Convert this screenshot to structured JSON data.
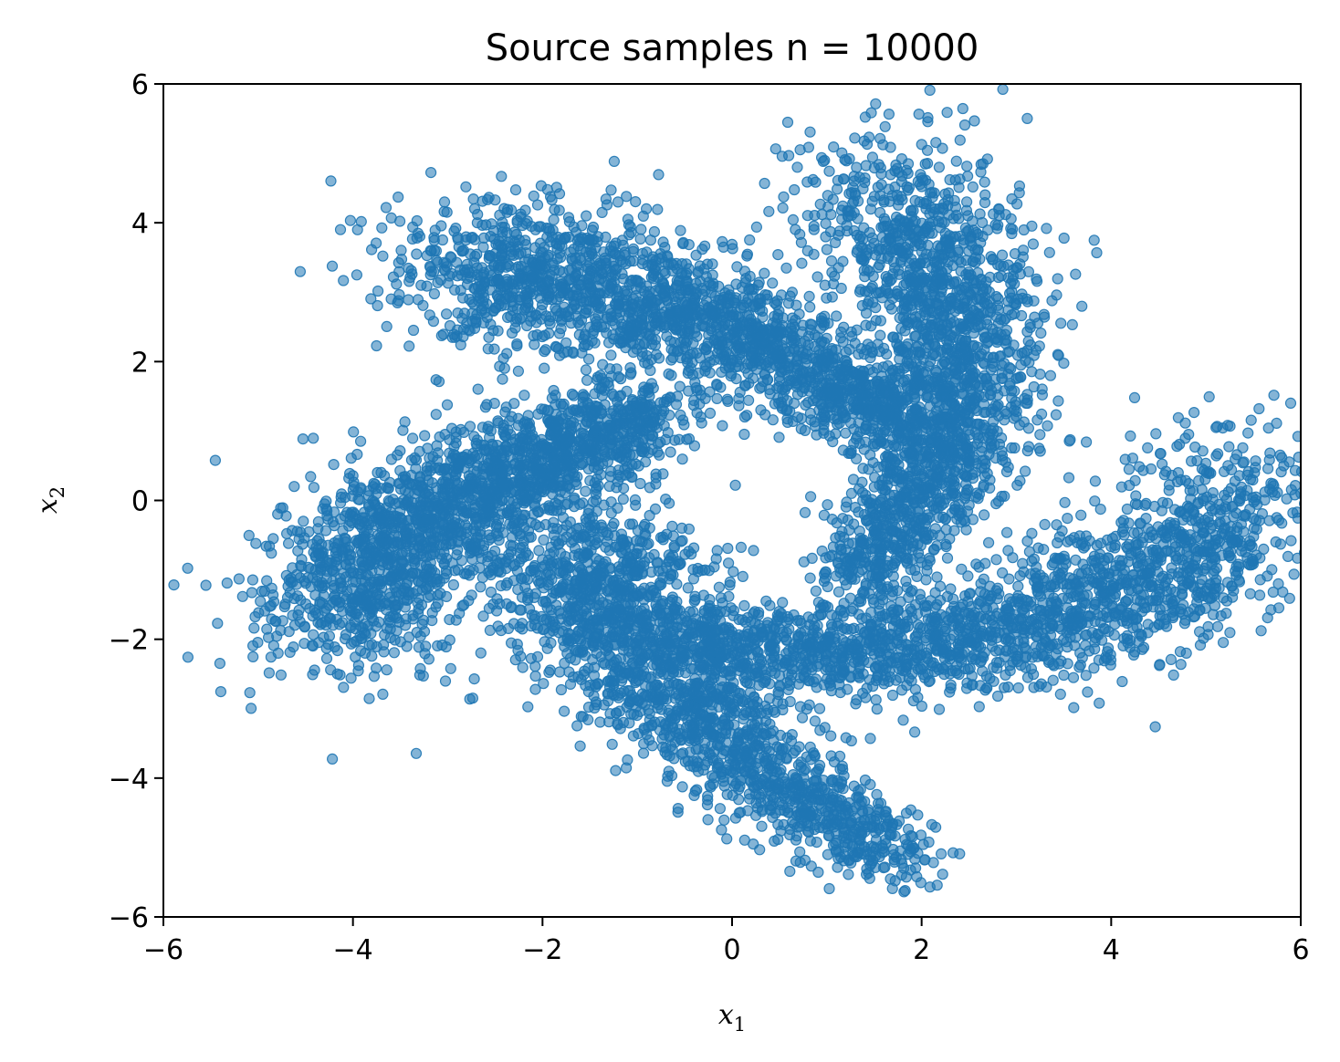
{
  "chart_data": {
    "type": "scatter",
    "title": "Source samples n = 10000",
    "xlabel": "x",
    "xlabel_sub": "1",
    "ylabel": "x",
    "ylabel_sub": "2",
    "xlim": [
      -6,
      6
    ],
    "ylim": [
      -6,
      6
    ],
    "xticks": [
      -6,
      -4,
      -2,
      0,
      2,
      4,
      6
    ],
    "yticks": [
      -6,
      -4,
      -2,
      0,
      2,
      4,
      6
    ],
    "grid": false,
    "legend": "none",
    "marker_color": "#1f77b4",
    "marker_alpha": 0.55,
    "n_samples": 10000,
    "distribution": {
      "kind": "pinwheel",
      "arms": [
        {
          "from": [
            -4.2,
            -1.8
          ],
          "via": [
            -3.5,
            0.2
          ],
          "to": [
            -0.8,
            1.2
          ]
        },
        {
          "from": [
            -3.0,
            3.3
          ],
          "via": [
            -0.5,
            3.3
          ],
          "to": [
            1.8,
            1.0
          ]
        },
        {
          "from": [
            1.6,
            4.6
          ],
          "via": [
            3.4,
            2.0
          ],
          "to": [
            1.3,
            -1.2
          ]
        },
        {
          "from": [
            5.6,
            0.3
          ],
          "via": [
            3.5,
            -2.8
          ],
          "to": [
            -0.5,
            -2.0
          ]
        },
        {
          "from": [
            -1.5,
            -0.5
          ],
          "via": [
            -1.8,
            -2.2
          ],
          "to": [
            1.8,
            -5.2
          ]
        }
      ]
    }
  }
}
